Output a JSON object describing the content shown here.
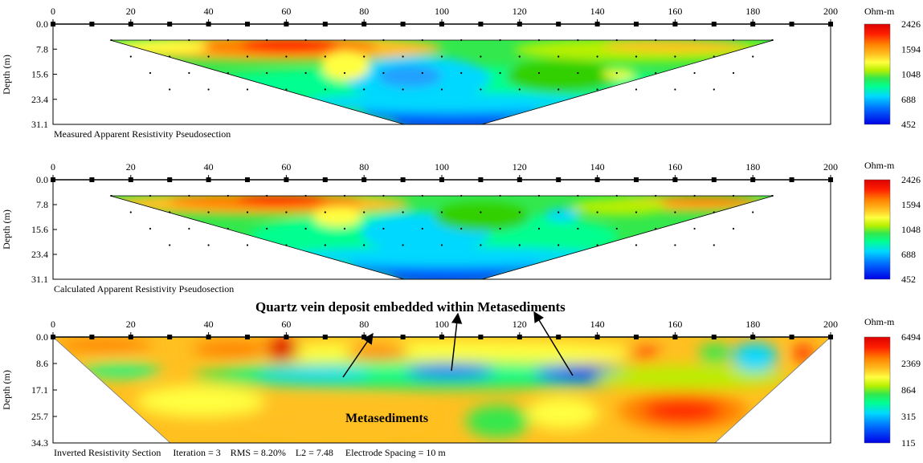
{
  "panels": [
    {
      "caption": "Measured Apparent Resistivity Pseudosection",
      "x_ticks": [
        0,
        20,
        40,
        60,
        80,
        100,
        120,
        140,
        160,
        180,
        200
      ],
      "depth_ticks": [
        "0.0",
        "7.8",
        "15.6",
        "23.4",
        "31.1"
      ],
      "ylabel": "Depth (m)",
      "legend_unit": "Ohm-m",
      "legend_values": [
        "2426",
        "1594",
        "1048",
        "688",
        "452"
      ]
    },
    {
      "caption": "Calculated Apparent Resistivity Pseudosection",
      "x_ticks": [
        0,
        20,
        40,
        60,
        80,
        100,
        120,
        140,
        160,
        180,
        200
      ],
      "depth_ticks": [
        "0.0",
        "7.8",
        "15.6",
        "23.4",
        "31.1"
      ],
      "ylabel": "Depth (m)",
      "legend_unit": "Ohm-m",
      "legend_values": [
        "2426",
        "1594",
        "1048",
        "688",
        "452"
      ]
    },
    {
      "caption": "Inverted Resistivity Section     Iteration = 3    RMS = 8.20%    L2 = 7.48     Electrode Spacing = 10 m",
      "x_ticks": [
        0,
        20,
        40,
        60,
        80,
        100,
        120,
        140,
        160,
        180,
        200
      ],
      "depth_ticks": [
        "0.0",
        "8.6",
        "17.1",
        "25.7",
        "34.3"
      ],
      "ylabel": "Depth (m)",
      "legend_unit": "Ohm-m",
      "legend_values": [
        "6494",
        "2369",
        "864",
        "315",
        "115"
      ]
    }
  ],
  "annotations": {
    "quartz": "Quartz vein deposit embedded within Metasediments",
    "metasediments": "Metasediments"
  },
  "colors": {
    "scale": [
      "#0000e6",
      "#0070ff",
      "#00d8ff",
      "#00ff90",
      "#33e84d",
      "#00d000",
      "#b8f000",
      "#ffff40",
      "#ffc020",
      "#ff8000",
      "#ff2000",
      "#dd0000"
    ]
  },
  "chart_data": [
    {
      "type": "heatmap",
      "title": "Measured Apparent Resistivity Pseudosection",
      "xlabel": "",
      "ylabel": "Depth (m)",
      "xlim": [
        0,
        200
      ],
      "ylim": [
        0,
        31.1
      ],
      "unit": "Ohm-m",
      "color_range": [
        452,
        2426
      ],
      "regions": [
        {
          "x": [
            15,
            185
          ],
          "depth": [
            7.8,
            9
          ],
          "value": 1300
        },
        {
          "x": [
            45,
            70
          ],
          "depth": [
            7.8,
            11
          ],
          "value": 2426
        },
        {
          "x": [
            25,
            45
          ],
          "depth": [
            7.8,
            11
          ],
          "value": 1800
        },
        {
          "x": [
            70,
            80
          ],
          "depth": [
            7.8,
            12
          ],
          "value": 1600
        },
        {
          "x": [
            120,
            175
          ],
          "depth": [
            7.8,
            10
          ],
          "value": 1500
        },
        {
          "x": [
            80,
            105
          ],
          "depth": [
            10,
            20
          ],
          "value": 688
        },
        {
          "x": [
            110,
            140
          ],
          "depth": [
            14,
            20
          ],
          "value": 1300
        },
        {
          "x": [
            85,
            115
          ],
          "depth": [
            22,
            31.1
          ],
          "value": 452
        }
      ]
    },
    {
      "type": "heatmap",
      "title": "Calculated Apparent Resistivity Pseudosection",
      "xlabel": "",
      "ylabel": "Depth (m)",
      "xlim": [
        0,
        200
      ],
      "ylim": [
        0,
        31.1
      ],
      "unit": "Ohm-m",
      "color_range": [
        452,
        2426
      ],
      "regions": [
        {
          "x": [
            15,
            185
          ],
          "depth": [
            7.8,
            9
          ],
          "value": 1300
        },
        {
          "x": [
            45,
            70
          ],
          "depth": [
            7.8,
            10
          ],
          "value": 2426
        },
        {
          "x": [
            25,
            45
          ],
          "depth": [
            7.8,
            11
          ],
          "value": 1800
        },
        {
          "x": [
            150,
            180
          ],
          "depth": [
            7.8,
            10
          ],
          "value": 1594
        },
        {
          "x": [
            85,
            105
          ],
          "depth": [
            10,
            22
          ],
          "value": 688
        },
        {
          "x": [
            125,
            140
          ],
          "depth": [
            14,
            20
          ],
          "value": 800
        },
        {
          "x": [
            85,
            115
          ],
          "depth": [
            24,
            31.1
          ],
          "value": 452
        }
      ]
    },
    {
      "type": "heatmap",
      "title": "Inverted Resistivity Section",
      "xlabel": "",
      "ylabel": "Depth (m)",
      "xlim": [
        0,
        200
      ],
      "ylim": [
        0,
        34.3
      ],
      "unit": "Ohm-m",
      "color_range": [
        115,
        6494
      ],
      "stats": {
        "iteration": 3,
        "rms_percent": 8.2,
        "l2": 7.48,
        "electrode_spacing_m": 10
      },
      "regions": [
        {
          "x": [
            55,
            65
          ],
          "depth": [
            1,
            6
          ],
          "value": 6494
        },
        {
          "x": [
            155,
            180
          ],
          "depth": [
            20,
            28
          ],
          "value": 5000
        },
        {
          "x": [
            40,
            80
          ],
          "depth": [
            8,
            16
          ],
          "value": 864
        },
        {
          "x": [
            95,
            110
          ],
          "depth": [
            10,
            16
          ],
          "value": 315
        },
        {
          "x": [
            130,
            145
          ],
          "depth": [
            10,
            16
          ],
          "value": 115
        },
        {
          "x": [
            180,
            185
          ],
          "depth": [
            4,
            10
          ],
          "value": 315
        },
        {
          "x": [
            20,
            160
          ],
          "depth": [
            20,
            34.3
          ],
          "value": 2369
        }
      ]
    }
  ]
}
